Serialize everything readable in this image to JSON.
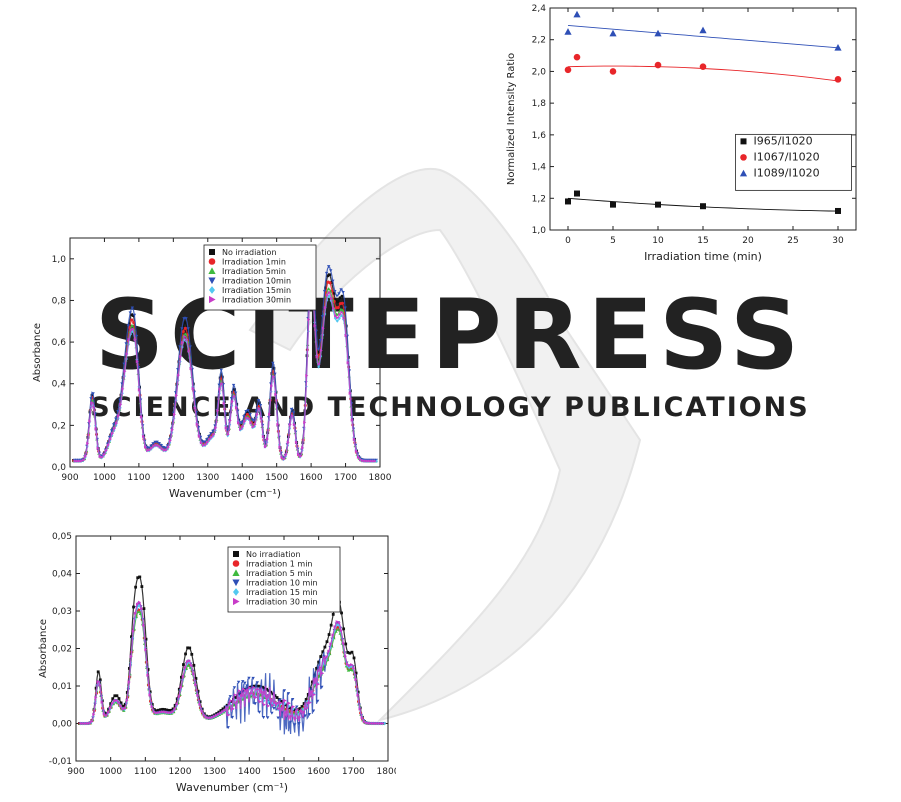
{
  "watermark": {
    "big": "SCITEPRESS",
    "small": "SCIENCE AND TECHNOLOGY PUBLICATIONS"
  },
  "chart_data": [
    {
      "id": "ratio",
      "type": "scatter",
      "xlabel": "Irradiation time (min)",
      "ylabel": "Normalized Intensity Ratio",
      "xlim": [
        -2,
        32
      ],
      "ylim": [
        1.0,
        2.4
      ],
      "xticks": [
        0,
        5,
        10,
        15,
        20,
        25,
        30
      ],
      "yticks": [
        1.0,
        1.2,
        1.4,
        1.6,
        1.8,
        2.0,
        2.2,
        2.4
      ],
      "decimal_comma": true,
      "legend_position": "center-right",
      "series": [
        {
          "name": "I965/I1020",
          "color": "#111111",
          "marker": "square",
          "x": [
            0,
            1,
            5,
            10,
            15,
            30
          ],
          "y": [
            1.18,
            1.23,
            1.16,
            1.16,
            1.15,
            1.12
          ],
          "fit": [
            1.2,
            -0.0045,
            6e-05
          ]
        },
        {
          "name": "I1067/I1020",
          "color": "#e8262a",
          "marker": "circle",
          "x": [
            0,
            1,
            5,
            10,
            15,
            30
          ],
          "y": [
            2.01,
            2.09,
            2.0,
            2.04,
            2.03,
            1.95
          ],
          "fit": [
            2.03,
            0.0015,
            -0.00015
          ]
        },
        {
          "name": "I1089/I1020",
          "color": "#2e4fb6",
          "marker": "triangle",
          "x": [
            0,
            1,
            5,
            10,
            15,
            30
          ],
          "y": [
            2.25,
            2.36,
            2.24,
            2.24,
            2.26,
            2.15
          ],
          "fit": [
            2.29,
            -0.0047,
            0.0
          ]
        }
      ]
    },
    {
      "id": "absorbance",
      "type": "line",
      "xlabel": "Wavenumber (cm⁻¹)",
      "ylabel": "Absorbance",
      "xlim": [
        900,
        1800
      ],
      "ylim": [
        0.0,
        1.1
      ],
      "xticks": [
        900,
        1000,
        1100,
        1200,
        1300,
        1400,
        1500,
        1600,
        1700,
        1800
      ],
      "yticks": [
        0.0,
        0.2,
        0.4,
        0.6,
        0.8,
        1.0
      ],
      "decimal_comma": true,
      "legend_position": "top-center",
      "peaks": [
        [
          965,
          0.3,
          9
        ],
        [
          1030,
          0.14,
          18
        ],
        [
          1067,
          0.42,
          16
        ],
        [
          1089,
          0.45,
          14
        ],
        [
          1150,
          0.08,
          20
        ],
        [
          1234,
          0.63,
          22
        ],
        [
          1315,
          0.12,
          20
        ],
        [
          1340,
          0.34,
          9
        ],
        [
          1375,
          0.31,
          10
        ],
        [
          1415,
          0.22,
          18
        ],
        [
          1450,
          0.23,
          9
        ],
        [
          1490,
          0.43,
          10
        ],
        [
          1545,
          0.23,
          9
        ],
        [
          1600,
          0.84,
          11
        ],
        [
          1650,
          0.84,
          22
        ],
        [
          1695,
          0.62,
          16
        ]
      ],
      "baseline": 0.03,
      "series": [
        {
          "name": "No irradiation",
          "color": "#111111",
          "marker": "square",
          "scale": 1.05
        },
        {
          "name": "Irradiation 1min",
          "color": "#e8262a",
          "marker": "circle",
          "scale": 1.01
        },
        {
          "name": "Irradiation 5min",
          "color": "#3fba3f",
          "marker": "triangle",
          "scale": 0.97
        },
        {
          "name": "Irradiation 10min",
          "color": "#2e4fb6",
          "marker": "triangle-down",
          "scale": 1.09
        },
        {
          "name": "Irradiation 15min",
          "color": "#52c8f0",
          "marker": "diamond",
          "scale": 0.93
        },
        {
          "name": "Irradiation 30min",
          "color": "#c83cc8",
          "marker": "triangle-right",
          "scale": 0.95
        }
      ]
    },
    {
      "id": "difference",
      "type": "line",
      "xlabel": "Wavenumber (cm⁻¹)",
      "ylabel": "Absorbance",
      "xlim": [
        900,
        1800
      ],
      "ylim": [
        -0.01,
        0.05
      ],
      "xticks": [
        900,
        1000,
        1100,
        1200,
        1300,
        1400,
        1500,
        1600,
        1700,
        1800
      ],
      "yticks": [
        -0.01,
        0.0,
        0.01,
        0.02,
        0.03,
        0.04,
        0.05
      ],
      "decimal_comma": true,
      "legend_position": "top-center",
      "peaks": [
        [
          965,
          0.011,
          8
        ],
        [
          1015,
          0.006,
          18
        ],
        [
          1067,
          0.018,
          12
        ],
        [
          1089,
          0.026,
          14
        ],
        [
          1150,
          0.003,
          30
        ],
        [
          1225,
          0.016,
          20
        ],
        [
          1420,
          0.008,
          70
        ],
        [
          1620,
          0.015,
          35
        ],
        [
          1660,
          0.018,
          18
        ],
        [
          1700,
          0.012,
          12
        ]
      ],
      "baseline": 0.0,
      "series": [
        {
          "name": "No irradiation",
          "color": "#111111",
          "marker": "square",
          "scale": 1.25,
          "noise": 0.0
        },
        {
          "name": "Irradiation 1 min",
          "color": "#e8262a",
          "marker": "circle",
          "scale": 0.97,
          "noise": 0.0
        },
        {
          "name": "Irradiation 5 min",
          "color": "#3fba3f",
          "marker": "triangle",
          "scale": 0.95,
          "noise": 0.001
        },
        {
          "name": "Irradiation 10 min",
          "color": "#2e4fb6",
          "marker": "triangle-down",
          "scale": 1.02,
          "noise": 0.007
        },
        {
          "name": "Irradiation 15 min",
          "color": "#52c8f0",
          "marker": "diamond",
          "scale": 1.0,
          "noise": 0.002
        },
        {
          "name": "Irradiation 30 min",
          "color": "#c83cc8",
          "marker": "triangle-right",
          "scale": 1.03,
          "noise": 0.003
        }
      ]
    }
  ]
}
